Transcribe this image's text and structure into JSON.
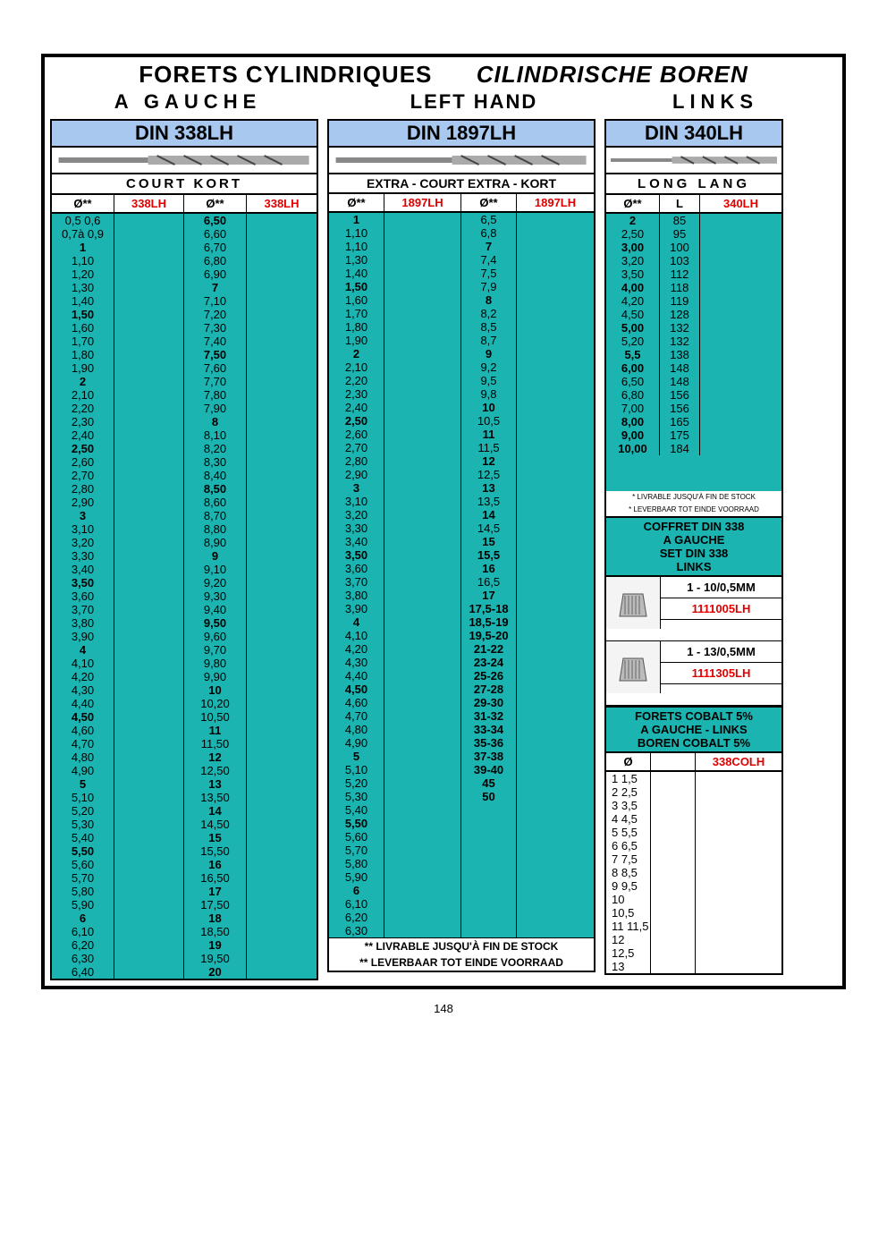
{
  "colors": {
    "teal": "#1bb4b0",
    "blue_hdr": "#a8c8f0",
    "red": "#e00000",
    "black": "#000000",
    "white": "#ffffff"
  },
  "page_number": "148",
  "title": {
    "fr": "FORETS  CYLINDRIQUES",
    "nl": "CILINDRISCHE BOREN"
  },
  "subtitle": {
    "left": "A GAUCHE",
    "center": "LEFT HAND",
    "right": "LINKS"
  },
  "col338": {
    "din": "DIN 338LH",
    "sub": "COURT   KORT",
    "headers": [
      "Ø**",
      "338LH",
      "Ø**",
      "338LH"
    ],
    "leftA": [
      {
        "v": "0,5  0,6"
      },
      {
        "v": "0,7à 0,9"
      },
      {
        "v": "1",
        "b": 1
      },
      {
        "v": "1,10"
      },
      {
        "v": "1,20"
      },
      {
        "v": "1,30"
      },
      {
        "v": "1,40"
      },
      {
        "v": "1,50",
        "b": 1
      },
      {
        "v": "1,60"
      },
      {
        "v": "1,70"
      },
      {
        "v": "1,80"
      },
      {
        "v": "1,90"
      },
      {
        "v": "2",
        "b": 1
      },
      {
        "v": "2,10"
      },
      {
        "v": "2,20"
      },
      {
        "v": "2,30"
      },
      {
        "v": "2,40"
      },
      {
        "v": "2,50",
        "b": 1
      },
      {
        "v": "2,60"
      },
      {
        "v": "2,70"
      },
      {
        "v": "2,80"
      },
      {
        "v": "2,90"
      },
      {
        "v": "3",
        "b": 1
      },
      {
        "v": "3,10"
      },
      {
        "v": "3,20"
      },
      {
        "v": "3,30"
      },
      {
        "v": "3,40"
      },
      {
        "v": "3,50",
        "b": 1
      },
      {
        "v": "3,60"
      },
      {
        "v": "3,70"
      },
      {
        "v": "3,80"
      },
      {
        "v": "3,90"
      },
      {
        "v": "4",
        "b": 1
      },
      {
        "v": "4,10"
      },
      {
        "v": "4,20"
      },
      {
        "v": "4,30"
      },
      {
        "v": "4,40"
      },
      {
        "v": "4,50",
        "b": 1
      },
      {
        "v": "4,60"
      },
      {
        "v": "4,70"
      },
      {
        "v": "4,80"
      },
      {
        "v": "4,90"
      },
      {
        "v": "5",
        "b": 1
      },
      {
        "v": "5,10"
      },
      {
        "v": "5,20"
      },
      {
        "v": "5,30"
      },
      {
        "v": "5,40"
      },
      {
        "v": "5,50",
        "b": 1
      },
      {
        "v": "5,60"
      },
      {
        "v": "5,70"
      },
      {
        "v": "5,80"
      },
      {
        "v": "5,90"
      },
      {
        "v": "6",
        "b": 1
      },
      {
        "v": "6,10"
      },
      {
        "v": "6,20"
      },
      {
        "v": "6,30"
      },
      {
        "v": "6,40"
      }
    ],
    "leftB": [
      {
        "v": "6,50",
        "b": 1
      },
      {
        "v": "6,60"
      },
      {
        "v": "6,70"
      },
      {
        "v": "6,80"
      },
      {
        "v": "6,90"
      },
      {
        "v": "7",
        "b": 1
      },
      {
        "v": "7,10"
      },
      {
        "v": "7,20"
      },
      {
        "v": "7,30"
      },
      {
        "v": "7,40"
      },
      {
        "v": "7,50",
        "b": 1
      },
      {
        "v": "7,60"
      },
      {
        "v": "7,70"
      },
      {
        "v": "7,80"
      },
      {
        "v": "7,90"
      },
      {
        "v": "8",
        "b": 1
      },
      {
        "v": "8,10"
      },
      {
        "v": "8,20"
      },
      {
        "v": "8,30"
      },
      {
        "v": "8,40"
      },
      {
        "v": "8,50",
        "b": 1
      },
      {
        "v": "8,60"
      },
      {
        "v": "8,70"
      },
      {
        "v": "8,80"
      },
      {
        "v": "8,90"
      },
      {
        "v": "9",
        "b": 1
      },
      {
        "v": "9,10"
      },
      {
        "v": "9,20"
      },
      {
        "v": "9,30"
      },
      {
        "v": "9,40"
      },
      {
        "v": "9,50",
        "b": 1
      },
      {
        "v": "9,60"
      },
      {
        "v": "9,70"
      },
      {
        "v": "9,80"
      },
      {
        "v": "9,90"
      },
      {
        "v": "10",
        "b": 1
      },
      {
        "v": "10,20"
      },
      {
        "v": "10,50"
      },
      {
        "v": "11",
        "b": 1
      },
      {
        "v": "11,50"
      },
      {
        "v": "12",
        "b": 1
      },
      {
        "v": "12,50"
      },
      {
        "v": "13",
        "b": 1
      },
      {
        "v": "13,50"
      },
      {
        "v": "14",
        "b": 1
      },
      {
        "v": "14,50"
      },
      {
        "v": "15",
        "b": 1
      },
      {
        "v": "15,50"
      },
      {
        "v": "16",
        "b": 1
      },
      {
        "v": "16,50"
      },
      {
        "v": "17",
        "b": 1
      },
      {
        "v": "17,50"
      },
      {
        "v": "18",
        "b": 1
      },
      {
        "v": "18,50"
      },
      {
        "v": "19",
        "b": 1
      },
      {
        "v": "19,50"
      },
      {
        "v": "20",
        "b": 1
      }
    ]
  },
  "col1897": {
    "din": "DIN 1897LH",
    "sub": "EXTRA - COURT   EXTRA - KORT",
    "headers": [
      "Ø**",
      "1897LH",
      "Ø**",
      "1897LH"
    ],
    "leftA": [
      {
        "v": "1",
        "b": 1
      },
      {
        "v": "1,10"
      },
      {
        "v": "1,10"
      },
      {
        "v": "1,30"
      },
      {
        "v": "1,40"
      },
      {
        "v": "1,50",
        "b": 1
      },
      {
        "v": "1,60"
      },
      {
        "v": "1,70"
      },
      {
        "v": "1,80"
      },
      {
        "v": "1,90"
      },
      {
        "v": "2",
        "b": 1
      },
      {
        "v": "2,10"
      },
      {
        "v": "2,20"
      },
      {
        "v": "2,30"
      },
      {
        "v": "2,40"
      },
      {
        "v": "2,50",
        "b": 1
      },
      {
        "v": "2,60"
      },
      {
        "v": "2,70"
      },
      {
        "v": "2,80"
      },
      {
        "v": "2,90"
      },
      {
        "v": "3",
        "b": 1
      },
      {
        "v": "3,10"
      },
      {
        "v": "3,20"
      },
      {
        "v": "3,30"
      },
      {
        "v": "3,40"
      },
      {
        "v": "3,50",
        "b": 1
      },
      {
        "v": "3,60"
      },
      {
        "v": "3,70"
      },
      {
        "v": "3,80"
      },
      {
        "v": "3,90"
      },
      {
        "v": "4",
        "b": 1
      },
      {
        "v": "4,10"
      },
      {
        "v": "4,20"
      },
      {
        "v": "4,30"
      },
      {
        "v": "4,40"
      },
      {
        "v": "4,50",
        "b": 1
      },
      {
        "v": "4,60"
      },
      {
        "v": "4,70"
      },
      {
        "v": "4,80"
      },
      {
        "v": "4,90"
      },
      {
        "v": "5",
        "b": 1
      },
      {
        "v": "5,10"
      },
      {
        "v": "5,20"
      },
      {
        "v": "5,30"
      },
      {
        "v": "5,40"
      },
      {
        "v": "5,50",
        "b": 1
      },
      {
        "v": "5,60"
      },
      {
        "v": "5,70"
      },
      {
        "v": "5,80"
      },
      {
        "v": "5,90"
      },
      {
        "v": "6",
        "b": 1
      },
      {
        "v": "6,10"
      },
      {
        "v": "6,20"
      },
      {
        "v": "6,30"
      }
    ],
    "leftB": [
      {
        "v": "6,5"
      },
      {
        "v": "6,8"
      },
      {
        "v": "7",
        "b": 1
      },
      {
        "v": "7,4"
      },
      {
        "v": "7,5"
      },
      {
        "v": "7,9"
      },
      {
        "v": "8",
        "b": 1
      },
      {
        "v": "8,2"
      },
      {
        "v": "8,5"
      },
      {
        "v": "8,7"
      },
      {
        "v": "9",
        "b": 1
      },
      {
        "v": "9,2"
      },
      {
        "v": "9,5"
      },
      {
        "v": "9,8"
      },
      {
        "v": "10",
        "b": 1
      },
      {
        "v": "10,5"
      },
      {
        "v": "11",
        "b": 1
      },
      {
        "v": "11,5"
      },
      {
        "v": "12",
        "b": 1
      },
      {
        "v": "12,5"
      },
      {
        "v": "13",
        "b": 1
      },
      {
        "v": "13,5"
      },
      {
        "v": "14",
        "b": 1
      },
      {
        "v": "14,5"
      },
      {
        "v": "15",
        "b": 1
      },
      {
        "v": "15,5",
        "b": 1
      },
      {
        "v": "16",
        "b": 1
      },
      {
        "v": "16,5"
      },
      {
        "v": "17",
        "b": 1
      },
      {
        "v": "17,5-18",
        "b": 1
      },
      {
        "v": "18,5-19",
        "b": 1
      },
      {
        "v": "19,5-20",
        "b": 1
      },
      {
        "v": "21-22",
        "b": 1
      },
      {
        "v": "23-24",
        "b": 1
      },
      {
        "v": "25-26",
        "b": 1
      },
      {
        "v": "27-28",
        "b": 1
      },
      {
        "v": "29-30",
        "b": 1
      },
      {
        "v": "31-32",
        "b": 1
      },
      {
        "v": "33-34",
        "b": 1
      },
      {
        "v": "35-36",
        "b": 1
      },
      {
        "v": "37-38",
        "b": 1
      },
      {
        "v": "39-40",
        "b": 1
      },
      {
        "v": "45",
        "b": 1
      },
      {
        "v": "50",
        "b": 1
      }
    ],
    "foot1": "** LIVRABLE JUSQU'À  FIN DE STOCK",
    "foot2": "** LEVERBAAR TOT EINDE VOORRAAD"
  },
  "col340": {
    "din": "DIN 340LH",
    "sub": "LONG  LANG",
    "headers": [
      "Ø**",
      "L",
      "340LH"
    ],
    "rows": [
      {
        "d": "2",
        "l": "85",
        "b": 1
      },
      {
        "d": "2,50",
        "l": "95"
      },
      {
        "d": "3,00",
        "l": "100",
        "b": 1
      },
      {
        "d": "3,20",
        "l": "103"
      },
      {
        "d": "3,50",
        "l": "112"
      },
      {
        "d": "4,00",
        "l": "118",
        "b": 1
      },
      {
        "d": "4,20",
        "l": "119"
      },
      {
        "d": "4,50",
        "l": "128"
      },
      {
        "d": "5,00",
        "l": "132",
        "b": 1
      },
      {
        "d": "5,20",
        "l": "132"
      },
      {
        "d": "5,5",
        "l": "138",
        "b": 1
      },
      {
        "d": "6,00",
        "l": "148",
        "b": 1
      },
      {
        "d": "6,50",
        "l": "148"
      },
      {
        "d": "6,80",
        "l": "156"
      },
      {
        "d": "7,00",
        "l": "156"
      },
      {
        "d": "8,00",
        "l": "165",
        "b": 1
      },
      {
        "d": "9,00",
        "l": "175",
        "b": 1
      },
      {
        "d": "10,00",
        "l": "184",
        "b": 1
      }
    ],
    "tiny1": "* LIVRABLE JUSQU'À FIN DE STOCK",
    "tiny2": "* LEVERBAAR TOT EINDE VOORRAAD",
    "set_hdr": "COFFRET DIN 338\nA GAUCHE\nSET DIN 338\nLINKS",
    "set1": {
      "label": "1 - 10/0,5MM",
      "code": "1111005LH"
    },
    "set2": {
      "label": "1 - 13/0,5MM",
      "code": "1111305LH"
    },
    "cobalt_hdr": "FORETS  COBALT 5%\nA GAUCHE - LINKS\nBOREN COBALT 5%",
    "cobalt_headers": [
      "Ø",
      "",
      "338COLH"
    ],
    "cobalt_rows": [
      "1 1,5",
      "2 2,5",
      "3 3,5",
      "4 4,5",
      "5 5,5",
      "6 6,5",
      "7 7,5",
      "8 8,5",
      "9 9,5",
      "10 10,5",
      "11 11,5",
      "12 12,5",
      "13"
    ]
  }
}
